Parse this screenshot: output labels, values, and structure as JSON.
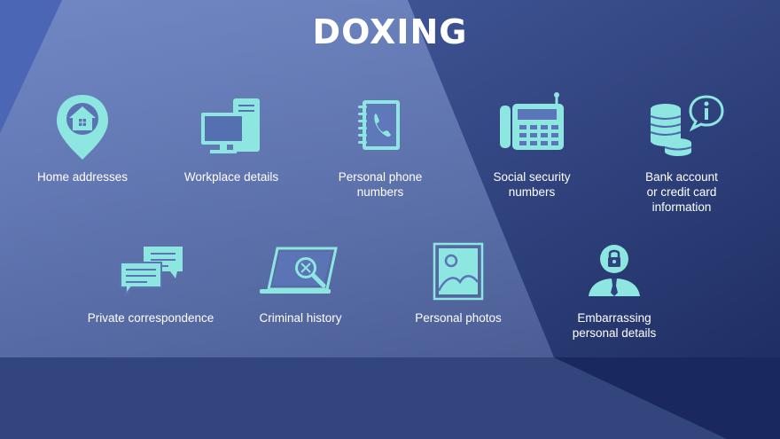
{
  "title": "DOXING",
  "items": [
    {
      "label": "Home addresses",
      "icon": "location-pin-house-icon"
    },
    {
      "label": "Workplace details",
      "icon": "desktop-computer-icon"
    },
    {
      "label": "Personal phone\nnumbers",
      "icon": "phone-book-icon"
    },
    {
      "label": "Social security\nnumbers",
      "icon": "office-phone-icon"
    },
    {
      "label": "Bank account\nor credit card\ninformation",
      "icon": "coins-info-icon"
    },
    {
      "label": "Private correspondence",
      "icon": "chat-bubbles-icon"
    },
    {
      "label": "Criminal history",
      "icon": "laptop-magnifier-icon"
    },
    {
      "label": "Personal photos",
      "icon": "photo-frame-icon"
    },
    {
      "label": "Embarrassing\npersonal details",
      "icon": "person-lock-icon"
    }
  ],
  "colors": {
    "icon": "#8ee6e0",
    "text": "#ffffff",
    "background": "#2f3f75"
  }
}
